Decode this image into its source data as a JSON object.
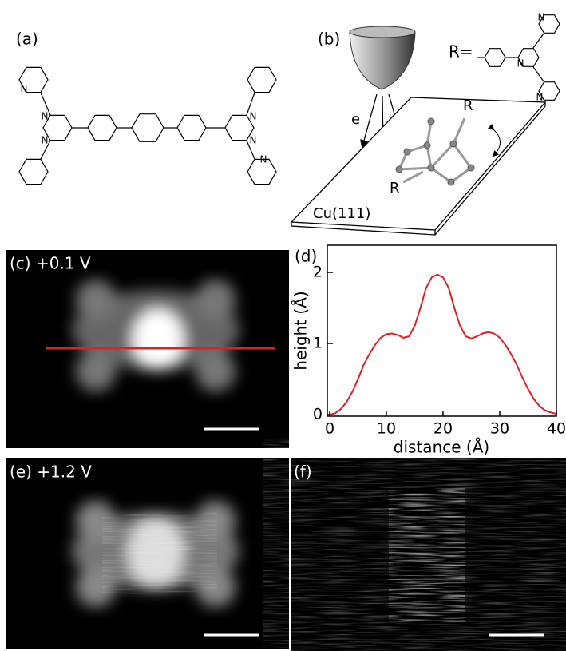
{
  "panels": {
    "a": {
      "label": "(a)",
      "atoms": [
        "N",
        "N",
        "N",
        "N",
        "N",
        "N"
      ]
    },
    "b": {
      "label": "(b)",
      "substituent": "R=",
      "atoms": [
        "N",
        "N",
        "N"
      ],
      "electron": "e",
      "groups": [
        "R",
        "R"
      ],
      "surface": "Cu(111)"
    },
    "c": {
      "label": "(c) +0.1 V"
    },
    "e": {
      "label": "(e) +1.2 V"
    },
    "f": {
      "label": "(f)"
    }
  },
  "chart_data": {
    "type": "line",
    "label": "(d)",
    "x_label": "distance (Å)",
    "y_label": "height (Å)",
    "x": [
      0,
      1,
      2,
      3,
      4,
      5,
      6,
      7,
      8,
      9,
      10,
      11,
      12,
      13,
      14,
      15,
      16,
      17,
      18,
      19,
      20,
      21,
      22,
      23,
      24,
      25,
      26,
      27,
      28,
      29,
      30,
      31,
      32,
      33,
      34,
      35,
      36,
      37,
      38,
      39,
      40
    ],
    "series": [
      {
        "color": "#e02020",
        "values": [
          0,
          0.02,
          0.08,
          0.18,
          0.32,
          0.5,
          0.7,
          0.85,
          0.98,
          1.08,
          1.13,
          1.14,
          1.12,
          1.08,
          1.1,
          1.25,
          1.5,
          1.78,
          1.93,
          1.97,
          1.93,
          1.78,
          1.5,
          1.25,
          1.1,
          1.07,
          1.1,
          1.14,
          1.16,
          1.14,
          1.08,
          0.98,
          0.85,
          0.7,
          0.52,
          0.36,
          0.22,
          0.12,
          0.06,
          0.03,
          0.01
        ]
      }
    ],
    "xlim": [
      0,
      40
    ],
    "ylim": [
      0,
      2.4
    ],
    "xticks": [
      0,
      10,
      20,
      30,
      40
    ],
    "yticks": [
      0,
      1,
      2
    ]
  }
}
